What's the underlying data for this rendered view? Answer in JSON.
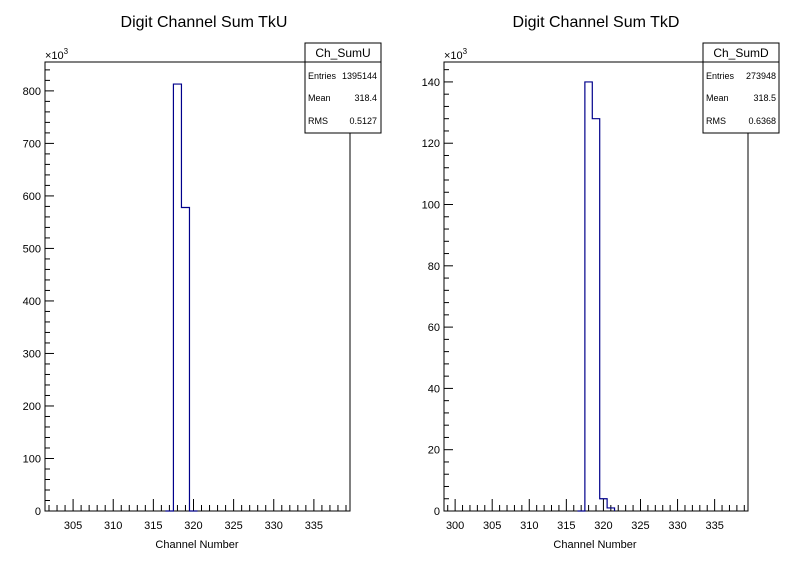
{
  "chart_data": [
    {
      "type": "bar",
      "title": "Digit Channel Sum TkU",
      "xlabel": "Channel Number",
      "ylabel": "",
      "xlim": [
        301.5,
        339.5
      ],
      "ylim": [
        0,
        855
      ],
      "y_multiplier_label": "×10",
      "y_multiplier_exp": "3",
      "xticks": [
        305,
        310,
        315,
        320,
        325,
        330,
        335
      ],
      "yticks": [
        0,
        100,
        200,
        300,
        400,
        500,
        600,
        700,
        800
      ],
      "bins": [
        {
          "x": 317,
          "value": 0
        },
        {
          "x": 318,
          "value": 813
        },
        {
          "x": 319,
          "value": 578
        },
        {
          "x": 320,
          "value": 0
        }
      ],
      "line_color": "#00008b",
      "legend_placement": "top-right",
      "stats": {
        "name": "Ch_SumU",
        "rows": [
          {
            "label": "Entries",
            "value": "1395144"
          },
          {
            "label": "Mean",
            "value": "318.4"
          },
          {
            "label": "RMS",
            "value": "0.5127"
          }
        ]
      }
    },
    {
      "type": "bar",
      "title": "Digit Channel Sum TkD",
      "xlabel": "Channel Number",
      "ylabel": "",
      "xlim": [
        298.5,
        339.5
      ],
      "ylim": [
        0,
        146.5
      ],
      "y_multiplier_label": "×10",
      "y_multiplier_exp": "3",
      "xticks": [
        300,
        305,
        310,
        315,
        320,
        325,
        330,
        335
      ],
      "yticks": [
        0,
        20,
        40,
        60,
        80,
        100,
        120,
        140
      ],
      "bins": [
        {
          "x": 317,
          "value": 0
        },
        {
          "x": 318,
          "value": 140
        },
        {
          "x": 319,
          "value": 128
        },
        {
          "x": 320,
          "value": 4
        },
        {
          "x": 321,
          "value": 1
        }
      ],
      "line_color": "#00008b",
      "legend_placement": "top-right",
      "stats": {
        "name": "Ch_SumD",
        "rows": [
          {
            "label": "Entries",
            "value": "273948"
          },
          {
            "label": "Mean",
            "value": "318.5"
          },
          {
            "label": "RMS",
            "value": "0.6368"
          }
        ]
      }
    }
  ]
}
